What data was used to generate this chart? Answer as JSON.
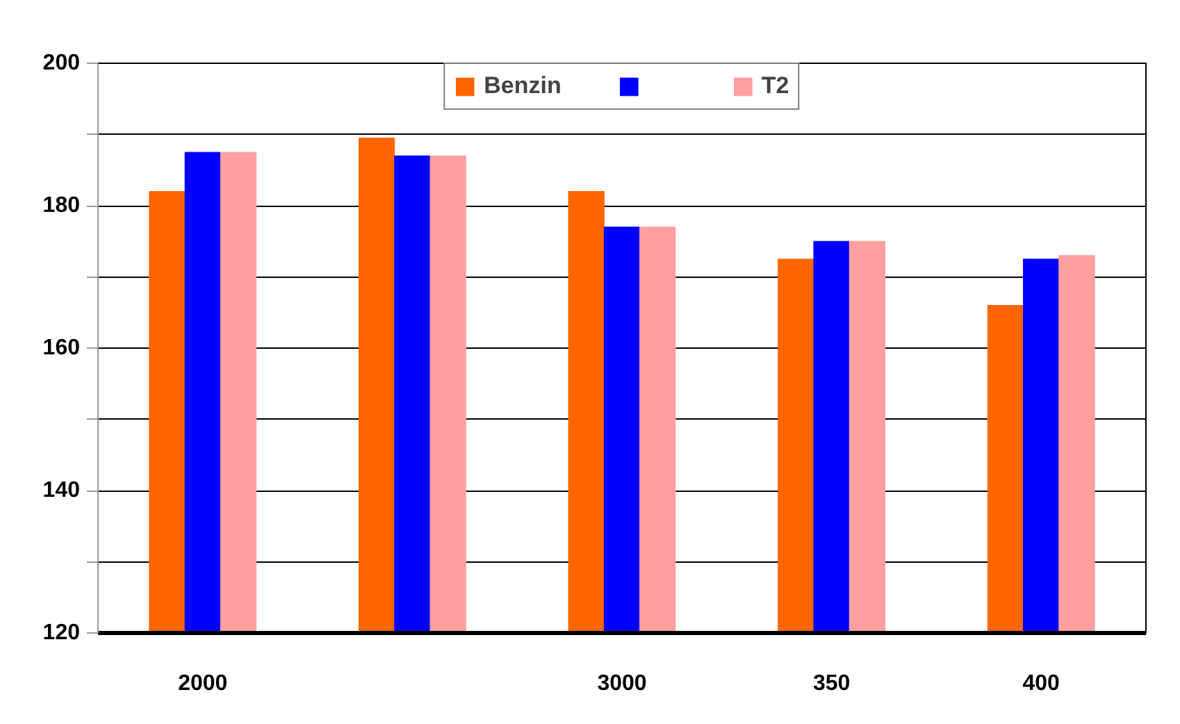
{
  "chart_data": {
    "type": "bar",
    "categories": [
      "2000",
      null,
      "3000",
      "350",
      "400"
    ],
    "series": [
      {
        "name": "Benzin",
        "color": "#ff6600",
        "values": [
          182,
          189.5,
          182,
          172.5,
          166
        ]
      },
      {
        "color": "#0000ff",
        "values": [
          187.5,
          187,
          177,
          175,
          172.5
        ]
      },
      {
        "name": "T2",
        "color": "#ff9f9f",
        "values": [
          187.5,
          187,
          177,
          175,
          173
        ]
      }
    ],
    "ylim": [
      120,
      200
    ],
    "yticks": [
      120,
      {
        "value": 130,
        "label": null
      },
      140,
      {
        "value": 150,
        "label": null
      },
      160,
      {
        "value": 170,
        "label": null
      },
      180,
      {
        "value": 190,
        "label": null
      },
      200
    ],
    "grid": "y",
    "legend": "top"
  }
}
